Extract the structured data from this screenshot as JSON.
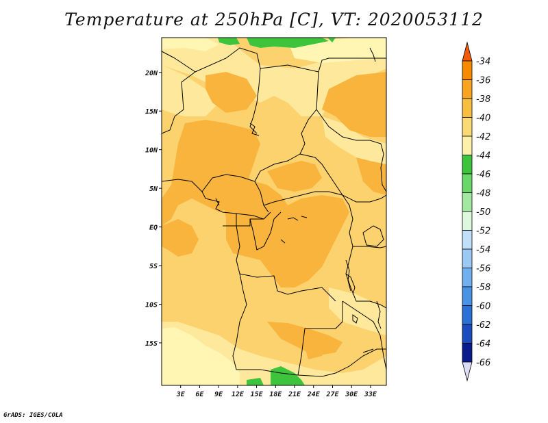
{
  "title": "Temperature at 250hPa [C], VT: 2020053112",
  "footer": "GrADS: IGES/COLA",
  "map": {
    "lat_range": [
      -20.5,
      24.5
    ],
    "lon_range": [
      0,
      35.5
    ],
    "lat_ticks": [
      {
        "value": 20,
        "label": "20N"
      },
      {
        "value": 15,
        "label": "15N"
      },
      {
        "value": 10,
        "label": "10N"
      },
      {
        "value": 5,
        "label": "5N"
      },
      {
        "value": 0,
        "label": "EQ"
      },
      {
        "value": -5,
        "label": "5S"
      },
      {
        "value": -10,
        "label": "10S"
      },
      {
        "value": -15,
        "label": "15S"
      }
    ],
    "lon_ticks": [
      {
        "value": 3,
        "label": "3E"
      },
      {
        "value": 6,
        "label": "6E"
      },
      {
        "value": 9,
        "label": "9E"
      },
      {
        "value": 12,
        "label": "12E"
      },
      {
        "value": 15,
        "label": "15E"
      },
      {
        "value": 18,
        "label": "18E"
      },
      {
        "value": 21,
        "label": "21E"
      },
      {
        "value": 24,
        "label": "24E"
      },
      {
        "value": 27,
        "label": "27E"
      },
      {
        "value": 30,
        "label": "30E"
      },
      {
        "value": 33,
        "label": "33E"
      }
    ]
  },
  "colorbar": {
    "labels": [
      "-34",
      "-36",
      "-38",
      "-40",
      "-42",
      "-44",
      "-46",
      "-48",
      "-50",
      "-52",
      "-54",
      "-56",
      "-58",
      "-60",
      "-62",
      "-64",
      "-66"
    ],
    "colors": [
      "#f05a0a",
      "#f78a00",
      "#f8a420",
      "#f8be40",
      "#fada74",
      "#fdf0a8",
      "#3ec43c",
      "#6ad868",
      "#a2e8a0",
      "#ddf8dc",
      "#bfe0f8",
      "#9acaf4",
      "#70b0ee",
      "#4a92e4",
      "#2a70d6",
      "#1a4cc0",
      "#0a1c8c",
      "#dcdcf4"
    ]
  },
  "colors": {
    "c38": "#f8b43c",
    "c40": "#fbd26e",
    "c42": "#fde89c",
    "c44": "#fff6b4",
    "green": "#3ec43c"
  }
}
